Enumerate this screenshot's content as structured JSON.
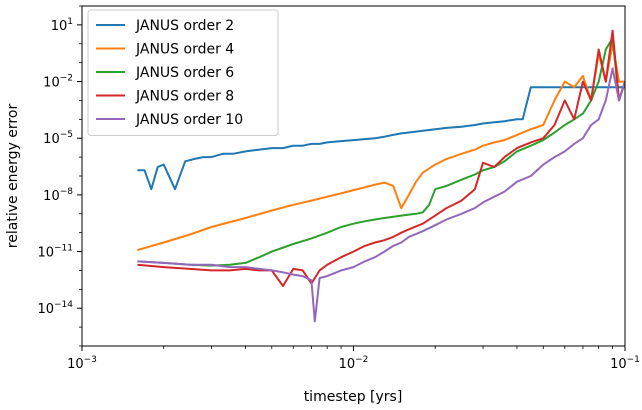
{
  "chart_data": {
    "type": "line",
    "xlabel": "timestep [yrs]",
    "ylabel": "relative energy error",
    "xscale": "log",
    "yscale": "log",
    "xlim": [
      0.001,
      0.1
    ],
    "ylim": [
      1e-16,
      100
    ],
    "grid": false,
    "legend_position": "top-left",
    "x_ticks": [
      {
        "value": 0.001,
        "base": "10",
        "exp": "−3"
      },
      {
        "value": 0.01,
        "base": "10",
        "exp": "−2"
      },
      {
        "value": 0.1,
        "base": "10",
        "exp": "−1"
      }
    ],
    "y_ticks": [
      {
        "value": 1e-14,
        "base": "10",
        "exp": "−14"
      },
      {
        "value": 1e-11,
        "base": "10",
        "exp": "−11"
      },
      {
        "value": 1e-08,
        "base": "10",
        "exp": "−8"
      },
      {
        "value": 1e-05,
        "base": "10",
        "exp": "−5"
      },
      {
        "value": 0.01,
        "base": "10",
        "exp": "−2"
      },
      {
        "value": 10,
        "base": "10",
        "exp": "1"
      }
    ],
    "series": [
      {
        "name": "JANUS order 2",
        "color": "#1f77b4",
        "x": [
          0.0016,
          0.0017,
          0.0018,
          0.0019,
          0.002,
          0.0022,
          0.0024,
          0.0026,
          0.0028,
          0.003,
          0.0033,
          0.0036,
          0.004,
          0.0045,
          0.005,
          0.0055,
          0.006,
          0.0065,
          0.007,
          0.0075,
          0.008,
          0.009,
          0.01,
          0.011,
          0.012,
          0.013,
          0.014,
          0.015,
          0.016,
          0.018,
          0.02,
          0.022,
          0.025,
          0.028,
          0.03,
          0.033,
          0.036,
          0.04,
          0.042,
          0.045,
          0.048,
          0.05,
          0.055,
          0.06,
          0.065,
          0.07,
          0.075,
          0.08,
          0.085,
          0.09,
          0.095,
          0.1
        ],
        "y": [
          2e-07,
          2e-07,
          2e-08,
          3e-07,
          4e-07,
          2e-08,
          6e-07,
          8e-07,
          1e-06,
          1e-06,
          1.5e-06,
          1.5e-06,
          2e-06,
          2.5e-06,
          3e-06,
          3e-06,
          4e-06,
          4e-06,
          5e-06,
          5e-06,
          6e-06,
          7e-06,
          8e-06,
          9e-06,
          1e-05,
          1.2e-05,
          1.5e-05,
          1.8e-05,
          2e-05,
          2.5e-05,
          3e-05,
          3.5e-05,
          4e-05,
          5e-05,
          6e-05,
          7e-05,
          8e-05,
          0.0001,
          0.0001,
          0.005,
          0.005,
          0.005,
          0.005,
          0.005,
          0.005,
          0.005,
          0.005,
          0.005,
          0.005,
          0.005,
          0.005,
          0.005
        ]
      },
      {
        "name": "JANUS order 4",
        "color": "#ff7f0e",
        "x": [
          0.0016,
          0.002,
          0.0025,
          0.003,
          0.004,
          0.005,
          0.006,
          0.007,
          0.008,
          0.009,
          0.01,
          0.011,
          0.012,
          0.013,
          0.014,
          0.015,
          0.016,
          0.017,
          0.018,
          0.02,
          0.022,
          0.025,
          0.028,
          0.03,
          0.033,
          0.036,
          0.04,
          0.045,
          0.05,
          0.055,
          0.06,
          0.065,
          0.07,
          0.075,
          0.08,
          0.085,
          0.09,
          0.095,
          0.1
        ],
        "y": [
          1.2e-11,
          3e-11,
          8e-11,
          2e-10,
          6e-10,
          1.5e-09,
          3e-09,
          5e-09,
          8e-09,
          1.2e-08,
          1.8e-08,
          2.5e-08,
          3.5e-08,
          4.5e-08,
          3e-08,
          2e-09,
          1e-08,
          5e-08,
          1.5e-07,
          4e-07,
          8e-07,
          1.5e-06,
          2.5e-06,
          4e-06,
          6e-06,
          8e-06,
          1.5e-05,
          3e-05,
          5e-05,
          0.001,
          0.01,
          0.005,
          0.02,
          0.001,
          0.3,
          0.01,
          1,
          0.01,
          0.01
        ]
      },
      {
        "name": "JANUS order 6",
        "color": "#2ca02c",
        "x": [
          0.0016,
          0.002,
          0.0025,
          0.003,
          0.0035,
          0.004,
          0.0045,
          0.005,
          0.006,
          0.007,
          0.008,
          0.009,
          0.01,
          0.011,
          0.012,
          0.013,
          0.014,
          0.015,
          0.016,
          0.017,
          0.018,
          0.019,
          0.02,
          0.022,
          0.024,
          0.026,
          0.028,
          0.03,
          0.033,
          0.036,
          0.04,
          0.045,
          0.05,
          0.055,
          0.06,
          0.065,
          0.07,
          0.075,
          0.08,
          0.085,
          0.09,
          0.095,
          0.1
        ],
        "y": [
          3e-12,
          2.5e-12,
          2e-12,
          1.8e-12,
          2e-12,
          2.5e-12,
          5e-12,
          1e-11,
          2.5e-11,
          5e-11,
          1e-10,
          2e-10,
          3e-10,
          4e-10,
          5e-10,
          6e-10,
          7e-10,
          8e-10,
          9e-10,
          1e-09,
          1.2e-09,
          3e-09,
          2e-08,
          3e-08,
          5e-08,
          8e-08,
          1.2e-07,
          2e-07,
          3e-07,
          6e-07,
          2e-06,
          4e-06,
          8e-06,
          2e-05,
          5e-05,
          0.0001,
          0.0002,
          0.001,
          0.01,
          0.5,
          2,
          0.001,
          0.01
        ]
      },
      {
        "name": "JANUS order 8",
        "color": "#d62728",
        "x": [
          0.0016,
          0.002,
          0.0025,
          0.003,
          0.0035,
          0.004,
          0.0045,
          0.005,
          0.0055,
          0.006,
          0.0065,
          0.007,
          0.0075,
          0.008,
          0.009,
          0.01,
          0.011,
          0.012,
          0.013,
          0.014,
          0.015,
          0.016,
          0.018,
          0.02,
          0.022,
          0.025,
          0.028,
          0.03,
          0.033,
          0.036,
          0.04,
          0.045,
          0.05,
          0.055,
          0.06,
          0.065,
          0.07,
          0.075,
          0.08,
          0.085,
          0.09,
          0.095,
          0.1
        ],
        "y": [
          2e-12,
          1.5e-12,
          1.2e-12,
          1e-12,
          1e-12,
          1.2e-12,
          1e-12,
          1e-12,
          1.5e-13,
          1.2e-12,
          1e-12,
          2e-13,
          1e-12,
          2e-12,
          5e-12,
          1e-11,
          2e-11,
          3e-11,
          4e-11,
          6e-11,
          1e-10,
          1.5e-10,
          3e-10,
          8e-10,
          2e-09,
          5e-09,
          2e-08,
          5e-07,
          3e-07,
          1e-06,
          3e-06,
          6e-06,
          1e-05,
          5e-05,
          0.001,
          0.0001,
          0.01,
          0.001,
          0.5,
          0.01,
          5,
          0.001,
          0.01
        ]
      },
      {
        "name": "JANUS order 10",
        "color": "#9467bd",
        "x": [
          0.0016,
          0.002,
          0.0025,
          0.003,
          0.0035,
          0.004,
          0.0045,
          0.005,
          0.0055,
          0.006,
          0.0065,
          0.007,
          0.0072,
          0.0075,
          0.008,
          0.009,
          0.01,
          0.011,
          0.012,
          0.013,
          0.014,
          0.015,
          0.016,
          0.018,
          0.02,
          0.022,
          0.025,
          0.028,
          0.03,
          0.033,
          0.036,
          0.04,
          0.045,
          0.05,
          0.055,
          0.06,
          0.065,
          0.07,
          0.075,
          0.08,
          0.085,
          0.09,
          0.095,
          0.1
        ],
        "y": [
          3e-12,
          2.5e-12,
          2e-12,
          2e-12,
          1.5e-12,
          1.5e-12,
          1.2e-12,
          1e-12,
          8e-13,
          6e-13,
          5e-13,
          3e-13,
          2e-15,
          4e-13,
          5e-13,
          1e-12,
          1.5e-12,
          3e-12,
          5e-12,
          1e-11,
          2e-11,
          3e-11,
          6e-11,
          1.2e-10,
          2.5e-10,
          5e-10,
          1e-09,
          2e-09,
          4e-09,
          8e-09,
          1.5e-08,
          5e-08,
          1e-07,
          4e-07,
          1e-06,
          2e-06,
          5e-06,
          1e-05,
          5e-05,
          0.0001,
          0.001,
          0.05,
          0.001,
          0.01
        ]
      }
    ]
  }
}
